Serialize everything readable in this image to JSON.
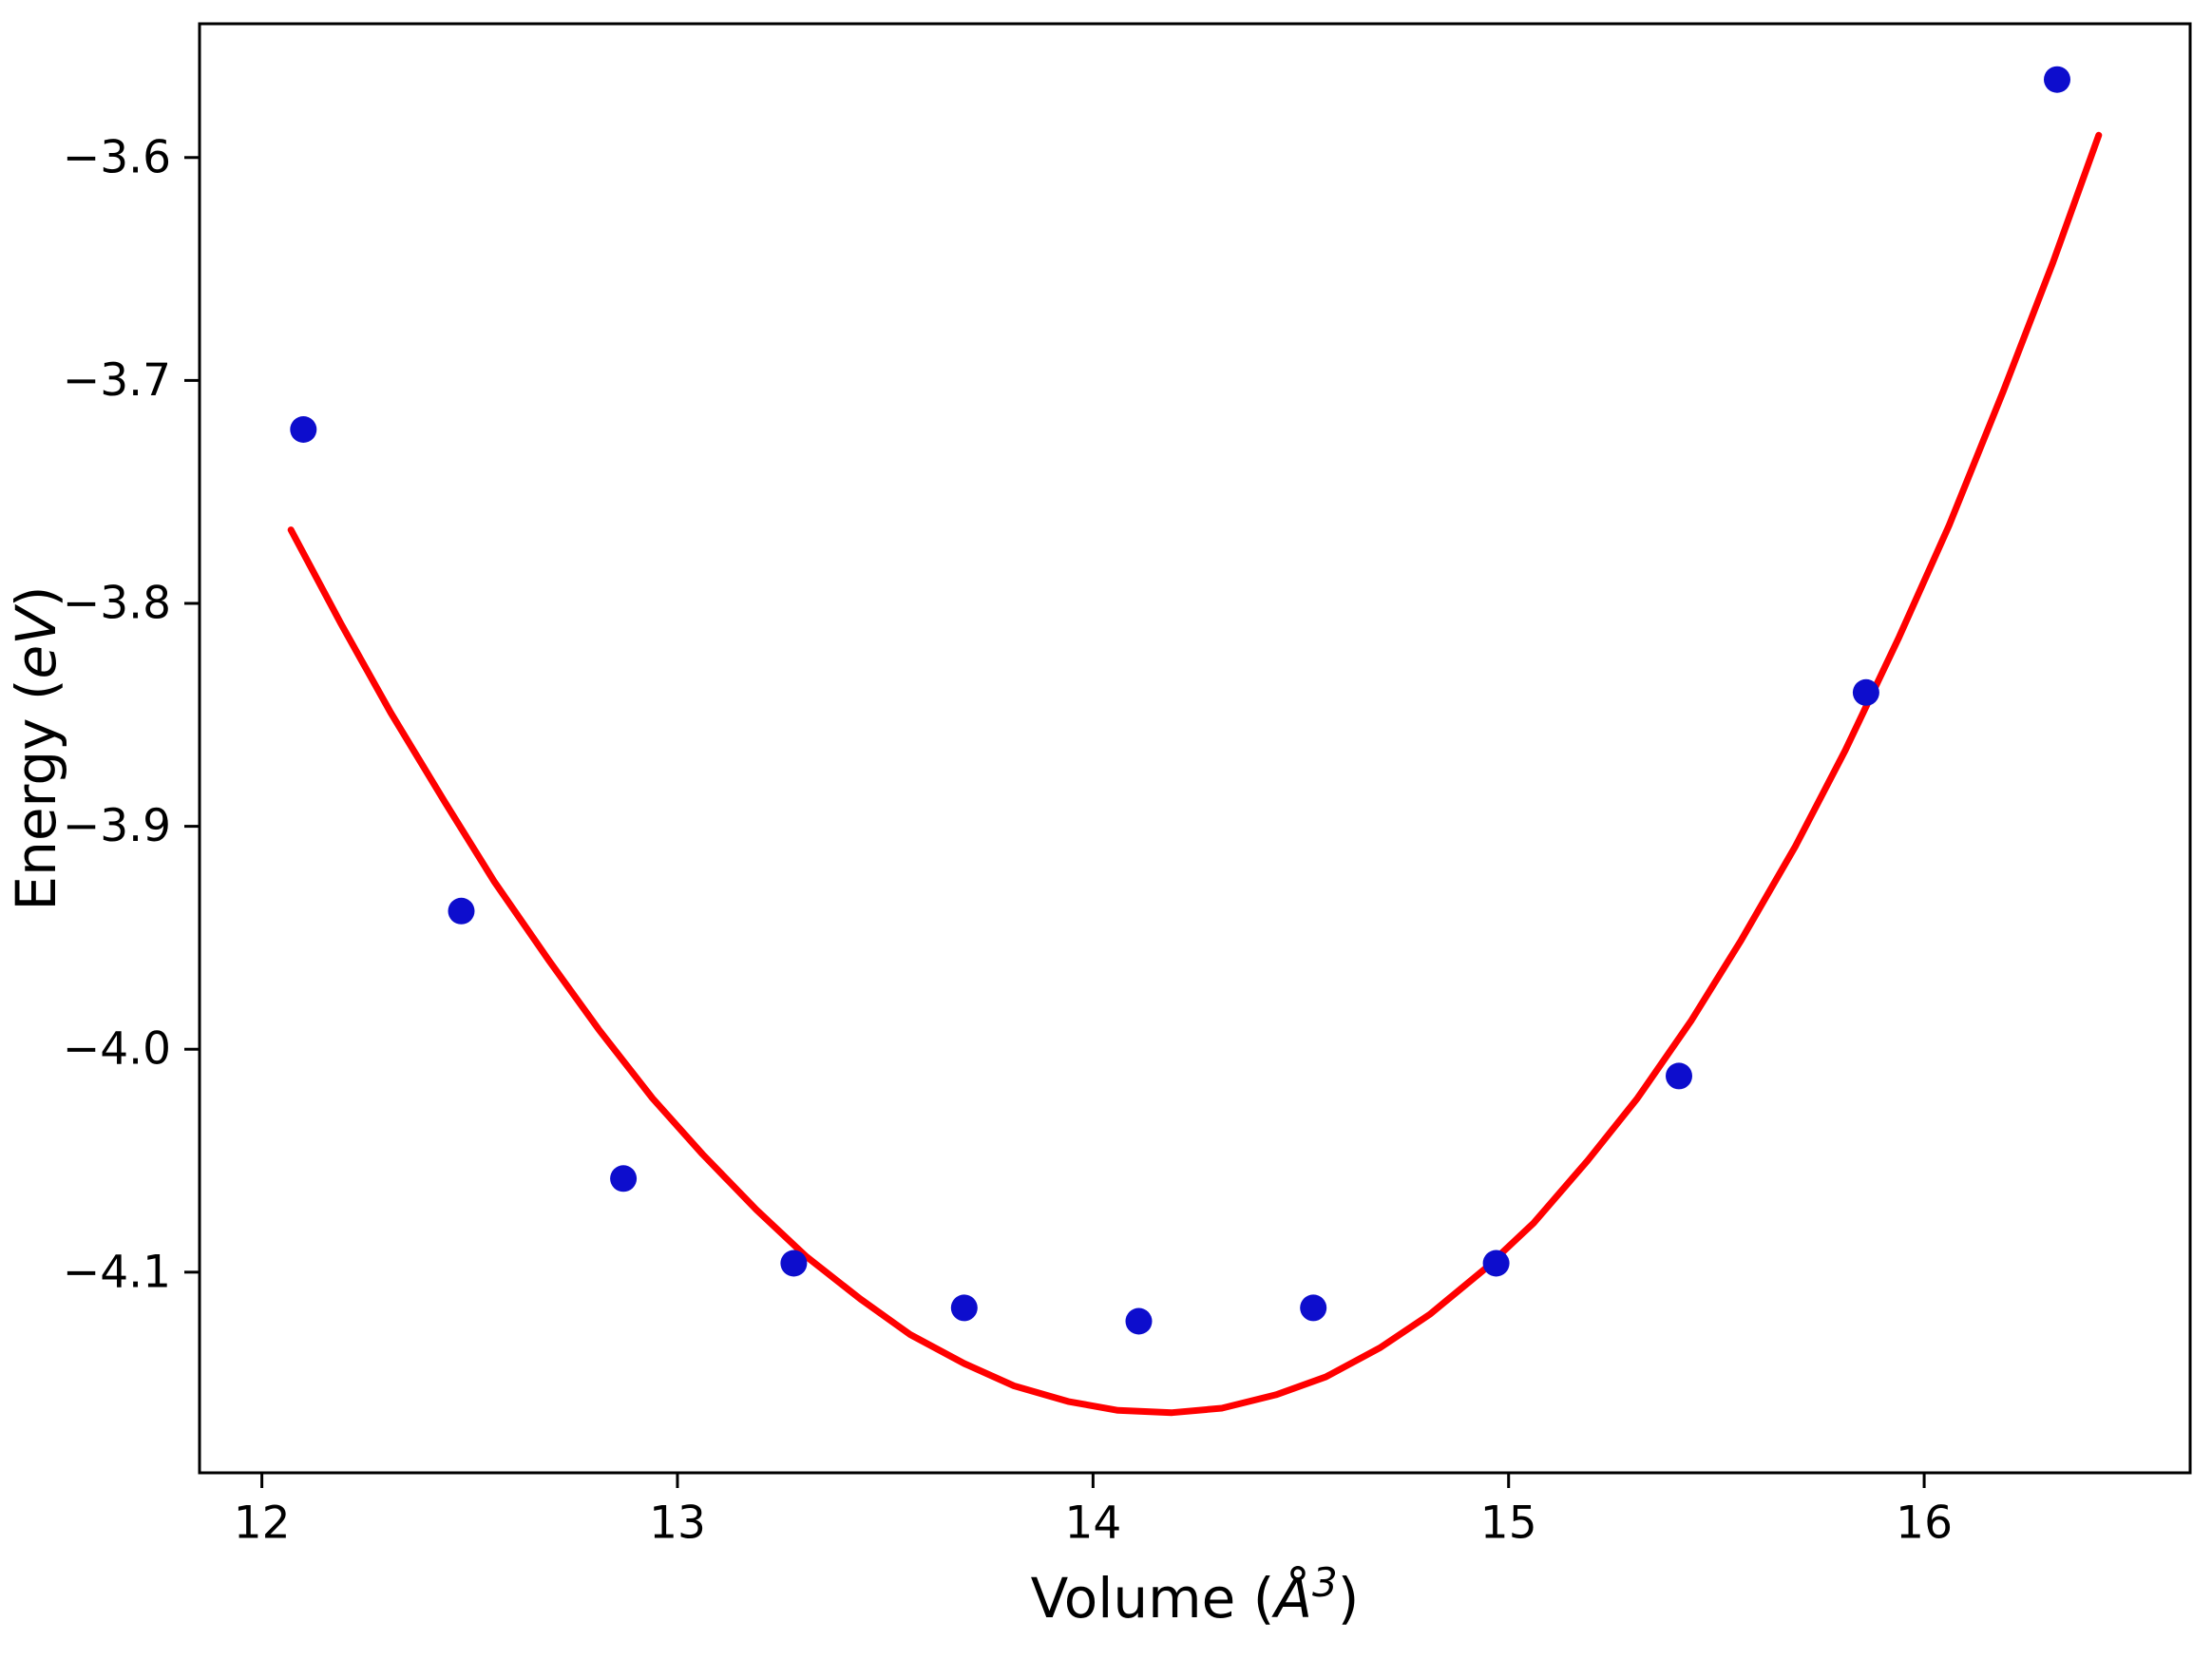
{
  "figure": {
    "background": "#ffffff",
    "axis_color": "#000000"
  },
  "chart_data": {
    "type": "scatter",
    "title": "",
    "xlabel": {
      "prefix": "Volume (",
      "symbol": "Å",
      "sup": "3",
      "suffix": ")",
      "full": "Volume (Å³)"
    },
    "ylabel": {
      "prefix": "Energy (",
      "italic": "eV",
      "suffix": ")",
      "full": "Energy (eV)"
    },
    "xlim": [
      11.85,
      16.64
    ],
    "ylim": [
      -4.19,
      -3.54
    ],
    "x_tick_values": [
      12,
      13,
      14,
      15,
      16
    ],
    "x_tick_labels": [
      "12",
      "13",
      "14",
      "15",
      "16"
    ],
    "y_tick_values": [
      -3.6,
      -3.7,
      -3.8,
      -3.9,
      -4.0,
      -4.1
    ],
    "y_tick_labels": [
      "−3.6",
      "−3.7",
      "−3.8",
      "−3.9",
      "−4.0",
      "−4.1"
    ],
    "grid": false,
    "legend": null,
    "series": [
      {
        "name": "fit-curve",
        "kind": "line",
        "color": "#ff0000",
        "line_width": 7,
        "points": [
          [
            12.07,
            -3.767
          ],
          [
            12.19,
            -3.809
          ],
          [
            12.31,
            -3.849
          ],
          [
            12.44,
            -3.889
          ],
          [
            12.56,
            -3.925
          ],
          [
            12.69,
            -3.96
          ],
          [
            12.81,
            -3.991
          ],
          [
            12.94,
            -4.022
          ],
          [
            13.06,
            -4.047
          ],
          [
            13.19,
            -4.072
          ],
          [
            13.31,
            -4.093
          ],
          [
            13.44,
            -4.112
          ],
          [
            13.56,
            -4.128
          ],
          [
            13.69,
            -4.141
          ],
          [
            13.81,
            -4.151
          ],
          [
            13.94,
            -4.158
          ],
          [
            14.06,
            -4.162
          ],
          [
            14.19,
            -4.163
          ],
          [
            14.31,
            -4.161
          ],
          [
            14.44,
            -4.155
          ],
          [
            14.56,
            -4.147
          ],
          [
            14.69,
            -4.134
          ],
          [
            14.81,
            -4.119
          ],
          [
            14.94,
            -4.099
          ],
          [
            15.06,
            -4.078
          ],
          [
            15.19,
            -4.05
          ],
          [
            15.31,
            -4.022
          ],
          [
            15.44,
            -3.987
          ],
          [
            15.56,
            -3.951
          ],
          [
            15.69,
            -3.909
          ],
          [
            15.81,
            -3.866
          ],
          [
            15.94,
            -3.815
          ],
          [
            16.06,
            -3.765
          ],
          [
            16.19,
            -3.705
          ],
          [
            16.31,
            -3.647
          ],
          [
            16.42,
            -3.59
          ]
        ]
      },
      {
        "name": "energy-points",
        "kind": "scatter",
        "color": "#0d0dcd",
        "marker_radius": 14,
        "points": [
          [
            12.1,
            -3.722
          ],
          [
            12.48,
            -3.938
          ],
          [
            12.87,
            -4.058
          ],
          [
            13.28,
            -4.096
          ],
          [
            13.69,
            -4.116
          ],
          [
            14.11,
            -4.122
          ],
          [
            14.53,
            -4.116
          ],
          [
            14.97,
            -4.096
          ],
          [
            15.41,
            -4.012
          ],
          [
            15.86,
            -3.84
          ],
          [
            16.32,
            -3.565
          ]
        ]
      }
    ]
  }
}
